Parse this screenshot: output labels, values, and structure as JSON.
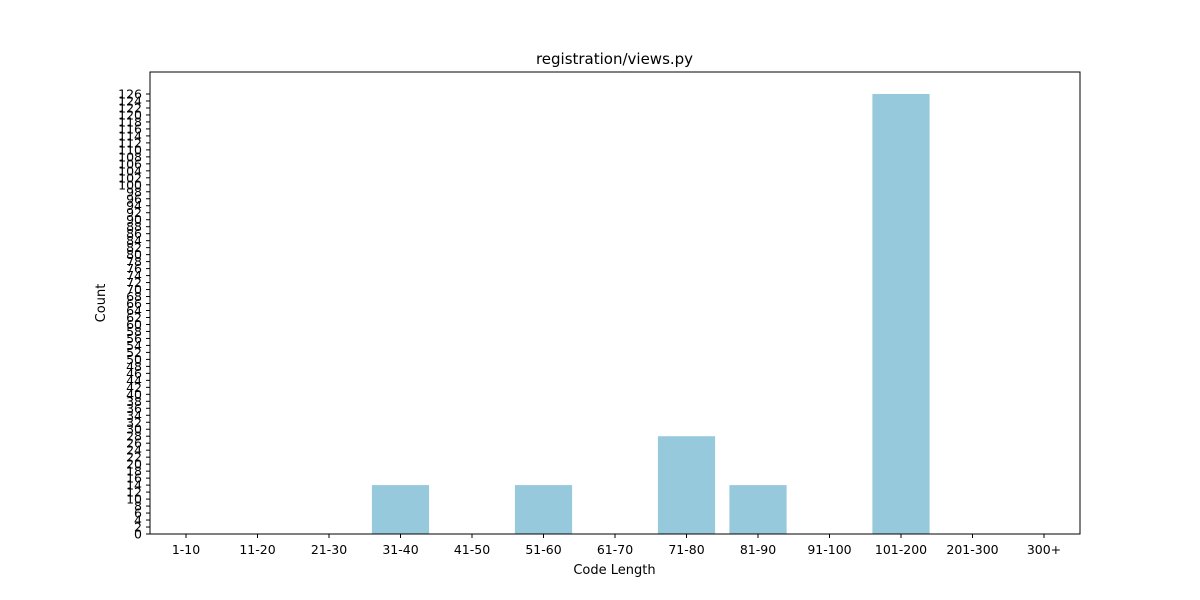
{
  "chart_data": {
    "type": "bar",
    "title": "registration/views.py",
    "xlabel": "Code Length",
    "ylabel": "Count",
    "categories": [
      "1-10",
      "11-20",
      "21-30",
      "31-40",
      "41-50",
      "51-60",
      "61-70",
      "71-80",
      "81-90",
      "91-100",
      "101-200",
      "201-300",
      "300+"
    ],
    "values": [
      0,
      0,
      0,
      14,
      0,
      14,
      0,
      28,
      14,
      0,
      126,
      0,
      0
    ],
    "ylim": [
      0,
      126
    ],
    "yticks": [
      0,
      2,
      4,
      6,
      8,
      10,
      12,
      14,
      16,
      18,
      20,
      22,
      24,
      26,
      28,
      30,
      32,
      34,
      36,
      38,
      40,
      42,
      44,
      46,
      48,
      50,
      52,
      54,
      56,
      58,
      60,
      62,
      64,
      66,
      68,
      70,
      72,
      74,
      76,
      78,
      80,
      82,
      84,
      86,
      88,
      90,
      92,
      94,
      96,
      98,
      100,
      102,
      104,
      106,
      108,
      110,
      112,
      114,
      116,
      118,
      120,
      122,
      124,
      126
    ],
    "bar_color": "#96c9dc",
    "grid": false,
    "legend": "none"
  }
}
